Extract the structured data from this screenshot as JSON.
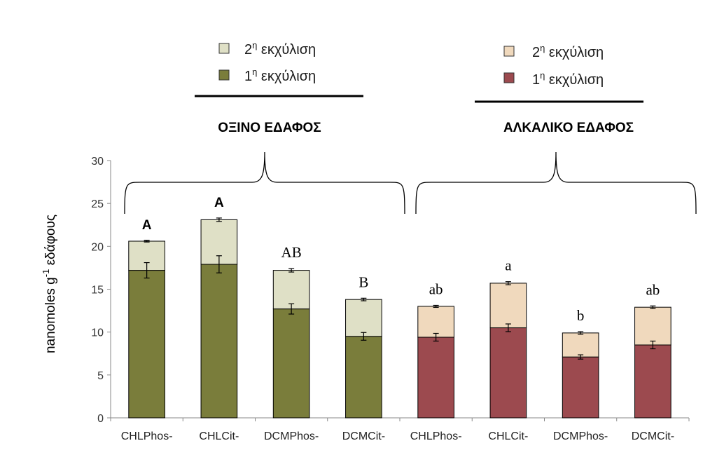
{
  "chart_data": {
    "type": "bar",
    "stacked": true,
    "ylabel_main": "nanomoles g",
    "ylabel_sup": "-1",
    "ylabel_rest": " εδάφους",
    "ylim": [
      0,
      30
    ],
    "yticks": [
      "0",
      "5",
      "10",
      "15",
      "20",
      "25",
      "30"
    ],
    "categories": [
      "CHLPhos-",
      "CHLCit-",
      "DCMPhos-",
      "DCMCit-",
      "CHLPhos-",
      "CHLCit-",
      "DCMPhos-",
      "DCMCit-"
    ],
    "groups": [
      {
        "title": "ΟΞΙΝΟ ΕΔΑΦΟΣ",
        "legend": [
          {
            "label_main": "2",
            "label_sup": "η",
            "label_rest": " εκχύλιση",
            "color": "#dfe0c6"
          },
          {
            "label_main": "1",
            "label_sup": "η",
            "label_rest": " εκχύλιση",
            "color": "#7a7d3b"
          }
        ]
      },
      {
        "title": "ΑΛΚΑΛΙΚΟ ΕΔΑΦΟΣ",
        "legend": [
          {
            "label_main": "2",
            "label_sup": "η",
            "label_rest": " εκχύλιση",
            "color": "#f0d9bd"
          },
          {
            "label_main": "1",
            "label_sup": "η",
            "label_rest": " εκχύλιση",
            "color": "#9c4a4f"
          }
        ]
      }
    ],
    "series": [
      {
        "values": [
          17.2,
          17.9,
          12.7,
          9.5,
          9.4,
          10.5,
          7.1,
          8.5
        ],
        "errors": [
          0.9,
          1.0,
          0.6,
          0.45,
          0.45,
          0.45,
          0.25,
          0.45
        ]
      },
      {
        "values": [
          3.4,
          5.2,
          4.5,
          4.3,
          3.6,
          5.2,
          2.8,
          4.4
        ],
        "errors": [
          0.1,
          0.2,
          0.2,
          0.15,
          0.12,
          0.18,
          0.15,
          0.15
        ]
      }
    ],
    "bar_colors_first": [
      "#7a7d3b",
      "#7a7d3b",
      "#7a7d3b",
      "#7a7d3b",
      "#9c4a4f",
      "#9c4a4f",
      "#9c4a4f",
      "#9c4a4f"
    ],
    "bar_colors_second": [
      "#dfe0c6",
      "#dfe0c6",
      "#dfe0c6",
      "#dfe0c6",
      "#f0d9bd",
      "#f0d9bd",
      "#f0d9bd",
      "#f0d9bd"
    ],
    "significance": [
      "A",
      "A",
      "AB",
      "B",
      "ab",
      "a",
      "b",
      "ab"
    ],
    "significance_style": [
      "bold",
      "bold",
      "serif",
      "serif",
      "serif",
      "serif",
      "serif",
      "serif"
    ]
  }
}
